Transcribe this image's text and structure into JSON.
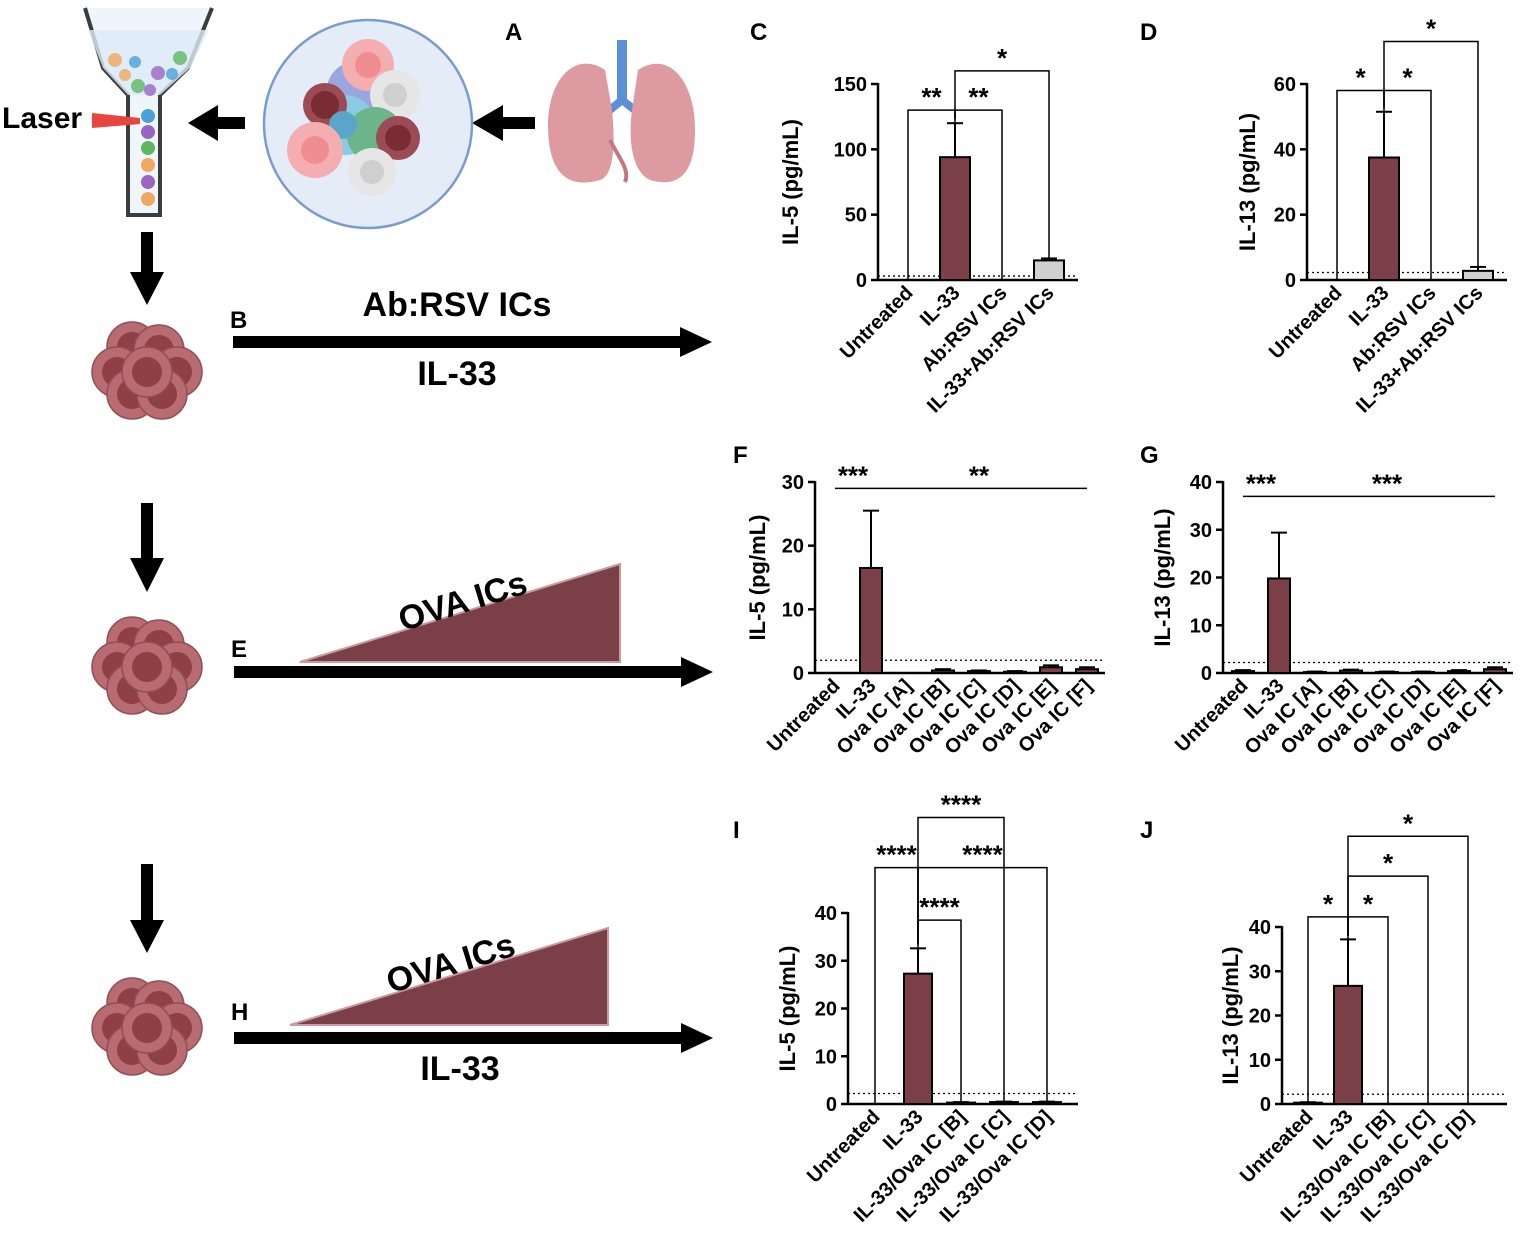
{
  "colors": {
    "bar": "#7b3f47",
    "bar_light": "#d0d0d0",
    "cell": "#b86b70",
    "cell_dark": "#8f3f46",
    "lung": "#dd9aa0"
  },
  "schematic": {
    "laser_label": "Laser",
    "panel_a": "A",
    "panel_b": "B",
    "panel_e": "E",
    "panel_h": "H",
    "b_top_label": "Ab:RSV ICs",
    "b_bottom_label": "IL-33",
    "e_label": "OVA ICs",
    "h_label": "OVA ICs",
    "h_bottom_label": "IL-33"
  },
  "chart_data": [
    {
      "panel": "C",
      "type": "bar",
      "ylabel": "IL-5 (pg/mL)",
      "ylim": [
        0,
        150
      ],
      "yticks": [
        0,
        50,
        100,
        150
      ],
      "categories": [
        "Untreated",
        "IL-33",
        "Ab:RSV ICs",
        "IL-33+Ab:RSV ICs"
      ],
      "values": [
        0,
        94,
        0,
        15
      ],
      "errors": [
        0,
        26,
        0,
        1.5
      ],
      "bar_style": [
        "dark",
        "dark",
        "dark",
        "light"
      ],
      "threshold": 3,
      "significance": [
        {
          "from": 0,
          "to": 1,
          "label": "**",
          "y": 130
        },
        {
          "from": 1,
          "to": 2,
          "label": "**",
          "y": 130
        },
        {
          "from": 1,
          "to": 3,
          "label": "*",
          "y": 160
        }
      ]
    },
    {
      "panel": "D",
      "type": "bar",
      "ylabel": "IL-13 (pg/mL)",
      "ylim": [
        0,
        60
      ],
      "yticks": [
        0,
        20,
        40,
        60
      ],
      "categories": [
        "Untreated",
        "IL-33",
        "Ab:RSV ICs",
        "IL-33+Ab:RSV ICs"
      ],
      "values": [
        0,
        37.5,
        0,
        2.8
      ],
      "errors": [
        0,
        14,
        0,
        1.2
      ],
      "bar_style": [
        "dark",
        "dark",
        "dark",
        "light"
      ],
      "threshold": 2.3,
      "significance": [
        {
          "from": 0,
          "to": 1,
          "label": "*",
          "y": 58
        },
        {
          "from": 1,
          "to": 2,
          "label": "*",
          "y": 58
        },
        {
          "from": 1,
          "to": 3,
          "label": "*",
          "y": 73
        }
      ]
    },
    {
      "panel": "F",
      "type": "bar",
      "ylabel": "IL-5 (pg/mL)",
      "ylim": [
        0,
        30
      ],
      "yticks": [
        0,
        10,
        20,
        30
      ],
      "categories": [
        "Untreated",
        "IL-33",
        "Ova IC [A]",
        "Ova IC [B]",
        "Ova IC [C]",
        "Ova IC [D]",
        "Ova IC [E]",
        "Ova IC [F]"
      ],
      "values": [
        0,
        16.5,
        0,
        0.4,
        0.3,
        0.2,
        0.9,
        0.6
      ],
      "errors": [
        0,
        9,
        0,
        0.2,
        0.1,
        0.1,
        0.3,
        0.3
      ],
      "threshold": 2,
      "significance": [
        {
          "from": 0,
          "to": 1,
          "label": "***",
          "y": 29,
          "style": "line"
        },
        {
          "from": 1,
          "to": 7,
          "label": "**",
          "y": 29,
          "style": "line"
        }
      ]
    },
    {
      "panel": "G",
      "type": "bar",
      "ylabel": "IL-13 (pg/mL)",
      "ylim": [
        0,
        40
      ],
      "yticks": [
        0,
        10,
        20,
        30,
        40
      ],
      "categories": [
        "Untreated",
        "IL-33",
        "Ova IC [A]",
        "Ova IC [B]",
        "Ova IC [C]",
        "Ova IC [D]",
        "Ova IC [E]",
        "Ova IC [F]"
      ],
      "values": [
        0.4,
        19.8,
        0.2,
        0.5,
        0.2,
        0.2,
        0.4,
        0.8
      ],
      "errors": [
        0.2,
        9.6,
        0.1,
        0.2,
        0.1,
        0.1,
        0.2,
        0.4
      ],
      "threshold": 2.2,
      "significance": [
        {
          "from": 0,
          "to": 1,
          "label": "***",
          "y": 37,
          "style": "line"
        },
        {
          "from": 1,
          "to": 7,
          "label": "***",
          "y": 37,
          "style": "line"
        }
      ]
    },
    {
      "panel": "I",
      "type": "bar",
      "ylabel": "IL-5 (pg/mL)",
      "ylim": [
        0,
        40
      ],
      "yticks": [
        0,
        10,
        20,
        30,
        40
      ],
      "categories": [
        "Untreated",
        "IL-33",
        "IL-33/Ova IC [B]",
        "IL-33/Ova IC [C]",
        "IL-33/Ova IC [D]"
      ],
      "values": [
        0,
        27.3,
        0.3,
        0.4,
        0.4
      ],
      "errors": [
        0,
        5.3,
        0.1,
        0.1,
        0.1
      ],
      "threshold": 2.2,
      "significance": [
        {
          "from": 1,
          "to": 2,
          "label": "****",
          "y": 38.5
        },
        {
          "from": 0,
          "to": 1,
          "label": "****",
          "y": 49.5
        },
        {
          "from": 1,
          "to": 4,
          "label": "****",
          "y": 49.5
        },
        {
          "from": 1,
          "to": 3,
          "label": "****",
          "y": 60
        }
      ]
    },
    {
      "panel": "J",
      "type": "bar",
      "ylabel": "IL-13 (pg/mL)",
      "ylim": [
        0,
        40
      ],
      "yticks": [
        0,
        10,
        20,
        30,
        40
      ],
      "categories": [
        "Untreated",
        "IL-33",
        "IL-33/Ova IC [B]",
        "IL-33/Ova IC [C]",
        "IL-33/Ova IC [D]"
      ],
      "values": [
        0.3,
        26.7,
        0,
        0,
        0
      ],
      "errors": [
        0.1,
        10.5,
        0,
        0,
        0
      ],
      "threshold": 2.2,
      "significance": [
        {
          "from": 0,
          "to": 1,
          "label": "*",
          "y": 42.3
        },
        {
          "from": 1,
          "to": 2,
          "label": "*",
          "y": 42.3
        },
        {
          "from": 1,
          "to": 3,
          "label": "*",
          "y": 51.5
        },
        {
          "from": 1,
          "to": 4,
          "label": "*",
          "y": 60.5
        }
      ]
    }
  ]
}
